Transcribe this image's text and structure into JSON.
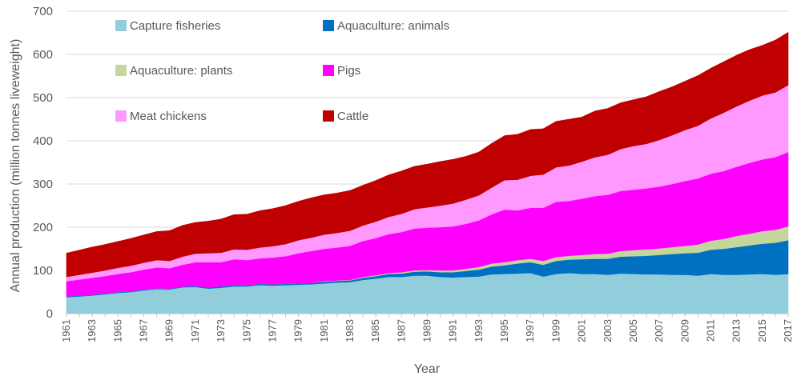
{
  "chart_data": {
    "type": "area",
    "stacked": true,
    "title": "",
    "xlabel": "Year",
    "ylabel": "Annual production (million tonnes liveweight)",
    "xlim": [
      1961,
      2017
    ],
    "ylim": [
      0,
      700
    ],
    "y_ticks": [
      0,
      100,
      200,
      300,
      400,
      500,
      600,
      700
    ],
    "x_ticks": [
      1961,
      1963,
      1965,
      1967,
      1969,
      1971,
      1973,
      1975,
      1977,
      1979,
      1981,
      1983,
      1985,
      1987,
      1989,
      1991,
      1993,
      1995,
      1997,
      1999,
      2001,
      2003,
      2005,
      2007,
      2009,
      2011,
      2013,
      2015,
      2017
    ],
    "grid": "horizontal",
    "legend_position": "top-left",
    "x": [
      1961,
      1962,
      1963,
      1964,
      1965,
      1966,
      1967,
      1968,
      1969,
      1970,
      1971,
      1972,
      1973,
      1974,
      1975,
      1976,
      1977,
      1978,
      1979,
      1980,
      1981,
      1982,
      1983,
      1984,
      1985,
      1986,
      1987,
      1988,
      1989,
      1990,
      1991,
      1992,
      1993,
      1994,
      1995,
      1996,
      1997,
      1998,
      1999,
      2000,
      2001,
      2002,
      2003,
      2004,
      2005,
      2006,
      2007,
      2008,
      2009,
      2010,
      2011,
      2012,
      2013,
      2014,
      2015,
      2016,
      2017
    ],
    "series": [
      {
        "name": "Capture fisheries",
        "color": "#92cddc",
        "values": [
          38,
          40,
          42,
          45,
          48,
          50,
          54,
          57,
          56,
          61,
          62,
          58,
          60,
          63,
          63,
          66,
          65,
          66,
          67,
          68,
          70,
          72,
          73,
          78,
          81,
          85,
          85,
          88,
          88,
          85,
          84,
          85,
          86,
          91,
          92,
          93,
          94,
          86,
          92,
          94,
          92,
          92,
          90,
          93,
          92,
          91,
          91,
          90,
          90,
          88,
          92,
          90,
          90,
          91,
          92,
          90,
          92
        ]
      },
      {
        "name": "Aquaculture: animals",
        "color": "#0070c0",
        "values": [
          2,
          2,
          2,
          2,
          2,
          2,
          2,
          2,
          2,
          2,
          2,
          3,
          3,
          3,
          3,
          3,
          3,
          3,
          3,
          3,
          4,
          4,
          4,
          5,
          6,
          7,
          8,
          9,
          10,
          11,
          12,
          14,
          16,
          18,
          20,
          23,
          25,
          27,
          30,
          31,
          34,
          35,
          37,
          39,
          41,
          43,
          45,
          48,
          50,
          53,
          56,
          60,
          64,
          67,
          70,
          74,
          78
        ]
      },
      {
        "name": "Aquaculture: plants",
        "color": "#c3d69b",
        "values": [
          0,
          0,
          0,
          0,
          0,
          0,
          0,
          0,
          0,
          0,
          0,
          0,
          0,
          0,
          0,
          0,
          0,
          0,
          0,
          0,
          1,
          1,
          1,
          2,
          2,
          2,
          3,
          3,
          3,
          4,
          4,
          5,
          6,
          7,
          7,
          8,
          8,
          9,
          9,
          9,
          10,
          11,
          12,
          13,
          14,
          15,
          15,
          16,
          17,
          19,
          21,
          23,
          26,
          27,
          29,
          30,
          32
        ]
      },
      {
        "name": "Pigs",
        "color": "#ff00ff",
        "values": [
          35,
          37,
          39,
          40,
          42,
          44,
          46,
          48,
          47,
          50,
          55,
          58,
          56,
          60,
          58,
          59,
          62,
          64,
          70,
          74,
          75,
          76,
          79,
          83,
          86,
          90,
          93,
          97,
          98,
          100,
          102,
          104,
          108,
          114,
          122,
          115,
          118,
          123,
          128,
          127,
          130,
          134,
          136,
          139,
          140,
          141,
          143,
          146,
          150,
          153,
          155,
          157,
          160,
          164,
          166,
          168,
          172
        ]
      },
      {
        "name": "Meat chickens",
        "color": "#ff99ff",
        "values": [
          10,
          11,
          12,
          13,
          14,
          15,
          16,
          17,
          17,
          19,
          20,
          21,
          22,
          23,
          24,
          25,
          26,
          28,
          30,
          31,
          33,
          34,
          35,
          36,
          38,
          40,
          42,
          45,
          47,
          50,
          53,
          56,
          58,
          62,
          68,
          71,
          74,
          77,
          80,
          82,
          86,
          90,
          93,
          97,
          101,
          103,
          108,
          113,
          118,
          122,
          128,
          135,
          140,
          144,
          148,
          150,
          155
        ]
      },
      {
        "name": "Cattle",
        "color": "#c00000",
        "values": [
          55,
          57,
          59,
          60,
          61,
          63,
          64,
          66,
          70,
          72,
          72,
          74,
          78,
          80,
          82,
          85,
          87,
          89,
          90,
          92,
          92,
          92,
          93,
          93,
          95,
          97,
          99,
          99,
          100,
          102,
          102,
          100,
          100,
          102,
          103,
          105,
          107,
          106,
          106,
          107,
          103,
          107,
          107,
          107,
          107,
          109,
          112,
          112,
          113,
          116,
          116,
          118,
          118,
          118,
          116,
          121,
          122
        ]
      }
    ]
  }
}
